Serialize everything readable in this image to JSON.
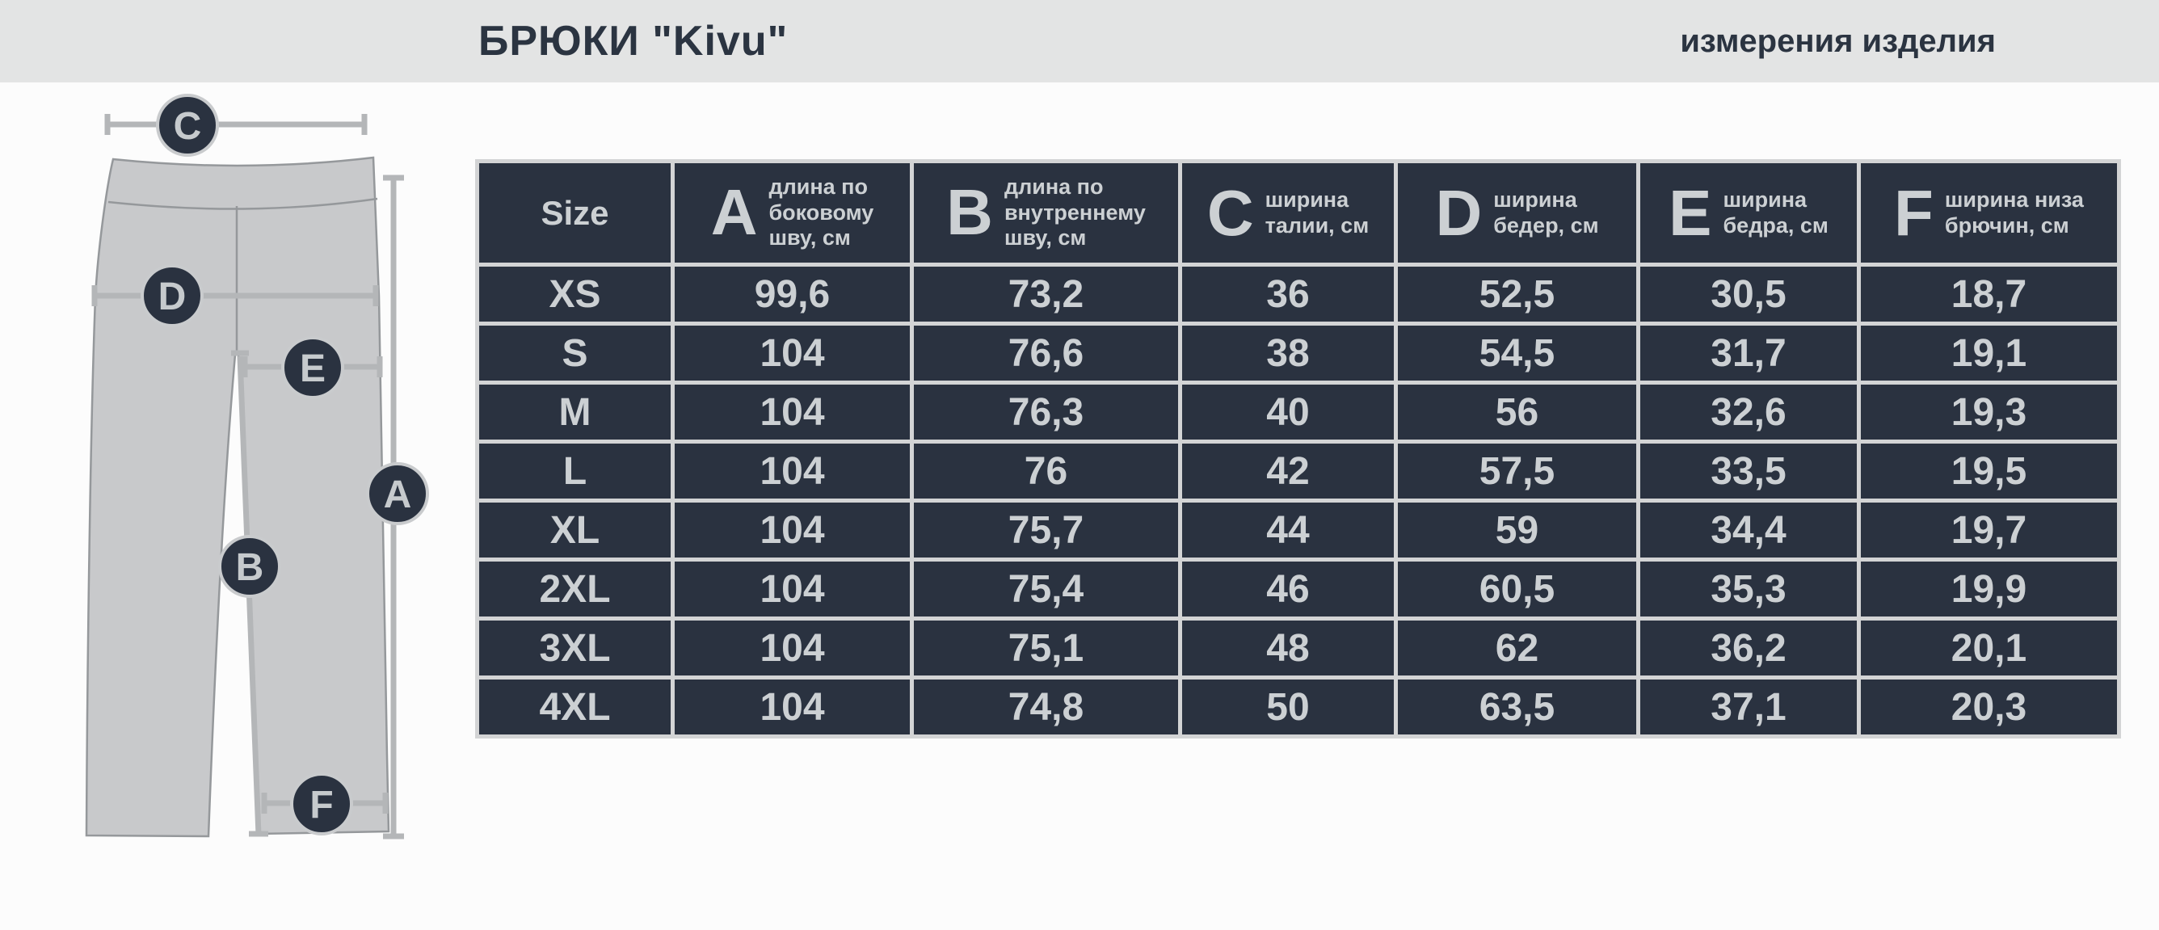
{
  "header": {
    "title": "БРЮКИ \"Kivu\"",
    "subtitle": "измерения изделия"
  },
  "diagram": {
    "badges": {
      "a": "A",
      "b": "B",
      "c": "C",
      "d": "D",
      "e": "E",
      "f": "F"
    }
  },
  "table": {
    "size_header": "Size",
    "columns": [
      {
        "letter": "A",
        "label": "длина по\nбоковому\nшву, см"
      },
      {
        "letter": "B",
        "label": "длина по\nвнутреннему\nшву, см"
      },
      {
        "letter": "C",
        "label": "ширина\nталии, см"
      },
      {
        "letter": "D",
        "label": "ширина\nбедер, см"
      },
      {
        "letter": "E",
        "label": "ширина\nбедра, см"
      },
      {
        "letter": "F",
        "label": "ширина низа\nбрючин, см"
      }
    ],
    "rows": [
      {
        "size": "XS",
        "values": [
          "99,6",
          "73,2",
          "36",
          "52,5",
          "30,5",
          "18,7"
        ]
      },
      {
        "size": "S",
        "values": [
          "104",
          "76,6",
          "38",
          "54,5",
          "31,7",
          "19,1"
        ]
      },
      {
        "size": "M",
        "values": [
          "104",
          "76,3",
          "40",
          "56",
          "32,6",
          "19,3"
        ]
      },
      {
        "size": "L",
        "values": [
          "104",
          "76",
          "42",
          "57,5",
          "33,5",
          "19,5"
        ]
      },
      {
        "size": "XL",
        "values": [
          "104",
          "75,7",
          "44",
          "59",
          "34,4",
          "19,7"
        ]
      },
      {
        "size": "2XL",
        "values": [
          "104",
          "75,4",
          "46",
          "60,5",
          "35,3",
          "19,9"
        ]
      },
      {
        "size": "3XL",
        "values": [
          "104",
          "75,1",
          "48",
          "62",
          "36,2",
          "20,1"
        ]
      },
      {
        "size": "4XL",
        "values": [
          "104",
          "74,8",
          "50",
          "63,5",
          "37,1",
          "20,3"
        ]
      }
    ]
  },
  "colors": {
    "dark_navy": "#2a3240",
    "header_band": "#e3e4e4",
    "grid_border": "#d3d4d5",
    "light_text": "#ccd0d3",
    "pants_fill": "#c8c9cb",
    "pants_outline": "#95989b",
    "measure_line": "#b4b6b8"
  }
}
